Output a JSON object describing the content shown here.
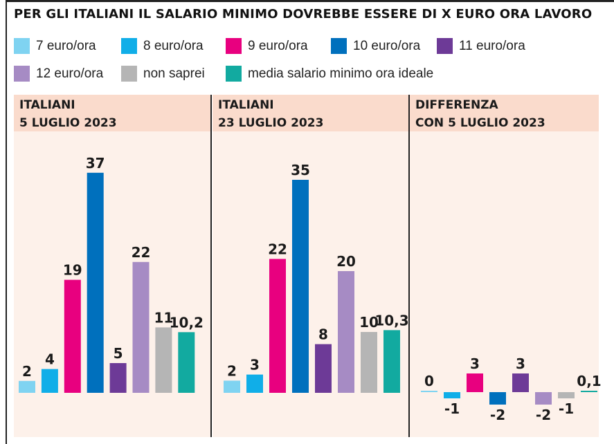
{
  "header": {
    "title": "PER GLI ITALIANI IL SALARIO MINIMO DOVREBBE ESSERE DI X EURO ORA LAVORO"
  },
  "legend": [
    {
      "label": "7 euro/ora",
      "color": "#7fd3f1"
    },
    {
      "label": "8 euro/ora",
      "color": "#10aee8"
    },
    {
      "label": "9 euro/ora",
      "color": "#e8007f"
    },
    {
      "label": "10 euro/ora",
      "color": "#0070bd"
    },
    {
      "label": "11 euro/ora",
      "color": "#6d3a97"
    },
    {
      "label": "12 euro/ora",
      "color": "#a68bc4"
    },
    {
      "label": "non saprei",
      "color": "#b5b5b5"
    },
    {
      "label": "media salario minimo ora ideale",
      "color": "#12aaa0"
    }
  ],
  "panels": [
    {
      "title_line1": "ITALIANI",
      "title_line2": "5 LUGLIO 2023"
    },
    {
      "title_line1": "ITALIANI",
      "title_line2": "23 LUGLIO 2023"
    },
    {
      "title_line1": "DIFFERENZA",
      "title_line2": "CON 5 LUGLIO 2023"
    }
  ],
  "chart_data": [
    {
      "type": "bar",
      "title": "ITALIANI 5 LUGLIO 2023",
      "categories": [
        "7 euro/ora",
        "8 euro/ora",
        "9 euro/ora",
        "10 euro/ora",
        "11 euro/ora",
        "12 euro/ora",
        "non saprei",
        "media salario minimo ora ideale"
      ],
      "values": [
        2,
        4,
        19,
        37,
        5,
        22,
        11,
        10.2
      ],
      "labels": [
        "2",
        "4",
        "19",
        "37",
        "5",
        "22",
        "11",
        "10,2"
      ]
    },
    {
      "type": "bar",
      "title": "ITALIANI 23 LUGLIO 2023",
      "categories": [
        "7 euro/ora",
        "8 euro/ora",
        "9 euro/ora",
        "10 euro/ora",
        "11 euro/ora",
        "12 euro/ora",
        "non saprei",
        "media salario minimo ora ideale"
      ],
      "values": [
        2,
        3,
        22,
        35,
        8,
        20,
        10,
        10.3
      ],
      "labels": [
        "2",
        "3",
        "22",
        "35",
        "8",
        "20",
        "10",
        "10,3"
      ]
    },
    {
      "type": "bar",
      "title": "DIFFERENZA CON 5 LUGLIO 2023",
      "categories": [
        "7 euro/ora",
        "8 euro/ora",
        "9 euro/ora",
        "10 euro/ora",
        "11 euro/ora",
        "12 euro/ora",
        "non saprei",
        "media salario minimo ora ideale"
      ],
      "values": [
        0,
        -1,
        3,
        -2,
        3,
        -2,
        -1,
        0.1
      ],
      "labels": [
        "0",
        "-1",
        "3",
        "-2",
        "3",
        "-2",
        "-1",
        "0,1"
      ]
    }
  ]
}
